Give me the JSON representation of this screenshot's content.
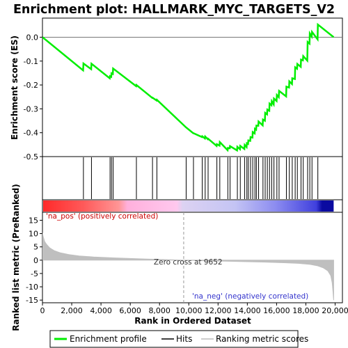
{
  "chart_data": {
    "type": "line",
    "title": "Enrichment plot: HALLMARK_MYC_TARGETS_V2",
    "colors": {
      "es_line": "#00ee00",
      "hits": "#000000",
      "metric_fill": "#bfbfbf",
      "pos_label": "#cc0000",
      "neg_label": "#3333cc",
      "zero_line": "#999999",
      "frame": "#000000"
    },
    "x_axis": {
      "label": "Rank in Ordered Dataset",
      "range": [
        0,
        20500
      ],
      "ticks": [
        0,
        2000,
        4000,
        6000,
        8000,
        10000,
        12000,
        14000,
        16000,
        18000,
        20000
      ],
      "tick_labels": [
        "0",
        "2,000",
        "4,000",
        "6,000",
        "8,000",
        "10,000",
        "12,000",
        "14,000",
        "16,000",
        "18,000",
        "20,000"
      ]
    },
    "es_panel": {
      "ylabel": "Enrichment score (ES)",
      "ylim": [
        -0.5,
        0.08
      ],
      "yticks": [
        -0.5,
        -0.4,
        -0.3,
        -0.2,
        -0.1,
        0.0
      ],
      "ytick_labels": [
        "-0.5",
        "-0.4",
        "-0.3",
        "-0.2",
        "-0.1",
        "0.0"
      ],
      "series": {
        "name": "Enrichment profile",
        "x": [
          0,
          2780,
          2800,
          3330,
          3350,
          4600,
          4620,
          4700,
          4720,
          4810,
          4830,
          6400,
          6420,
          7500,
          7520,
          7800,
          7820,
          9800,
          9820,
          10300,
          10320,
          10900,
          10920,
          11100,
          11120,
          11300,
          11320,
          11900,
          11920,
          12100,
          12120,
          12650,
          12670,
          12800,
          12820,
          13300,
          13320,
          13500,
          13520,
          13800,
          13820,
          13950,
          13970,
          14050,
          14070,
          14200,
          14220,
          14350,
          14370,
          14500,
          14520,
          14600,
          14620,
          14750,
          14770,
          15050,
          15070,
          15200,
          15220,
          15350,
          15370,
          15500,
          15520,
          15650,
          15670,
          15800,
          15820,
          16000,
          16020,
          16150,
          16170,
          16650,
          16670,
          16850,
          16870,
          17050,
          17070,
          17250,
          17270,
          17400,
          17420,
          17650,
          17670,
          17800,
          17820,
          18100,
          18120,
          18250,
          18270,
          18400,
          18420,
          18800,
          18820,
          19900
        ],
        "y": [
          0.0,
          -0.139,
          -0.11,
          -0.134,
          -0.111,
          -0.172,
          -0.163,
          -0.166,
          -0.151,
          -0.154,
          -0.131,
          -0.205,
          -0.2,
          -0.254,
          -0.253,
          -0.265,
          -0.262,
          -0.377,
          -0.378,
          -0.402,
          -0.402,
          -0.418,
          -0.415,
          -0.424,
          -0.416,
          -0.427,
          -0.425,
          -0.455,
          -0.448,
          -0.454,
          -0.439,
          -0.473,
          -0.464,
          -0.465,
          -0.456,
          -0.474,
          -0.459,
          -0.469,
          -0.455,
          -0.468,
          -0.451,
          -0.46,
          -0.444,
          -0.447,
          -0.432,
          -0.434,
          -0.418,
          -0.42,
          -0.397,
          -0.403,
          -0.383,
          -0.387,
          -0.37,
          -0.371,
          -0.353,
          -0.369,
          -0.345,
          -0.35,
          -0.317,
          -0.323,
          -0.303,
          -0.308,
          -0.278,
          -0.285,
          -0.268,
          -0.281,
          -0.257,
          -0.267,
          -0.242,
          -0.251,
          -0.225,
          -0.248,
          -0.207,
          -0.211,
          -0.185,
          -0.196,
          -0.172,
          -0.175,
          -0.126,
          -0.132,
          -0.112,
          -0.124,
          -0.094,
          -0.097,
          -0.079,
          -0.098,
          -0.02,
          -0.027,
          0.016,
          0.003,
          0.022,
          -0.009,
          0.053,
          0.0
        ]
      }
    },
    "hits_panel": {
      "name": "Hits",
      "hit_ranks": [
        2800,
        3350,
        4620,
        4720,
        4830,
        6420,
        7520,
        7820,
        9820,
        10320,
        10920,
        11120,
        11320,
        11920,
        12120,
        12670,
        12820,
        13320,
        13520,
        13820,
        13970,
        14070,
        14220,
        14370,
        14520,
        14620,
        14770,
        15070,
        15220,
        15370,
        15520,
        15670,
        15820,
        16020,
        16170,
        16670,
        16870,
        17070,
        17270,
        17420,
        17670,
        17820,
        18120,
        18270,
        18420,
        18820
      ],
      "gradient_stops": [
        {
          "offset": 0.0,
          "color": "#ff2a2a"
        },
        {
          "offset": 0.14,
          "color": "#ff5a5a"
        },
        {
          "offset": 0.26,
          "color": "#ff9595"
        },
        {
          "offset": 0.29,
          "color": "#ffb0dc"
        },
        {
          "offset": 0.46,
          "color": "#ffc8ee"
        },
        {
          "offset": 0.48,
          "color": "#dcd2f2"
        },
        {
          "offset": 0.66,
          "color": "#c4c4f4"
        },
        {
          "offset": 0.8,
          "color": "#8c8cf0"
        },
        {
          "offset": 0.94,
          "color": "#4040dd"
        },
        {
          "offset": 0.96,
          "color": "#0a0aa0"
        },
        {
          "offset": 1.0,
          "color": "#0a0aa0"
        }
      ]
    },
    "metric_panel": {
      "ylabel": "Ranked list metric (PreRanked)",
      "ylim": [
        -16,
        18
      ],
      "yticks": [
        -15,
        -10,
        -5,
        0,
        5,
        10,
        15
      ],
      "ytick_labels": [
        "-15",
        "-10",
        "-5",
        "0",
        "5",
        "10",
        "15"
      ],
      "curve": {
        "name": "Ranking metric scores",
        "x": [
          0,
          50,
          150,
          300,
          500,
          800,
          1200,
          1800,
          2500,
          3500,
          5000,
          7000,
          9000,
          9652,
          11000,
          13000,
          15000,
          16500,
          17500,
          18300,
          18800,
          19200,
          19500,
          19700,
          19800,
          19860,
          19900
        ],
        "y": [
          10.2,
          8.8,
          7.0,
          5.8,
          4.6,
          3.6,
          2.8,
          2.1,
          1.6,
          1.2,
          0.85,
          0.45,
          0.12,
          0.0,
          -0.2,
          -0.45,
          -0.7,
          -0.95,
          -1.2,
          -1.6,
          -2.1,
          -2.9,
          -4.0,
          -5.8,
          -8.5,
          -12.0,
          -15.0
        ]
      },
      "zero_cross_label": "Zero cross at 9652",
      "zero_cross_rank": 9652,
      "pos_label": "'na_pos' (positively correlated)",
      "neg_label": "'na_neg' (negatively correlated)"
    },
    "legend": {
      "items": [
        "Enrichment profile",
        "Hits",
        "Ranking metric scores"
      ]
    }
  }
}
